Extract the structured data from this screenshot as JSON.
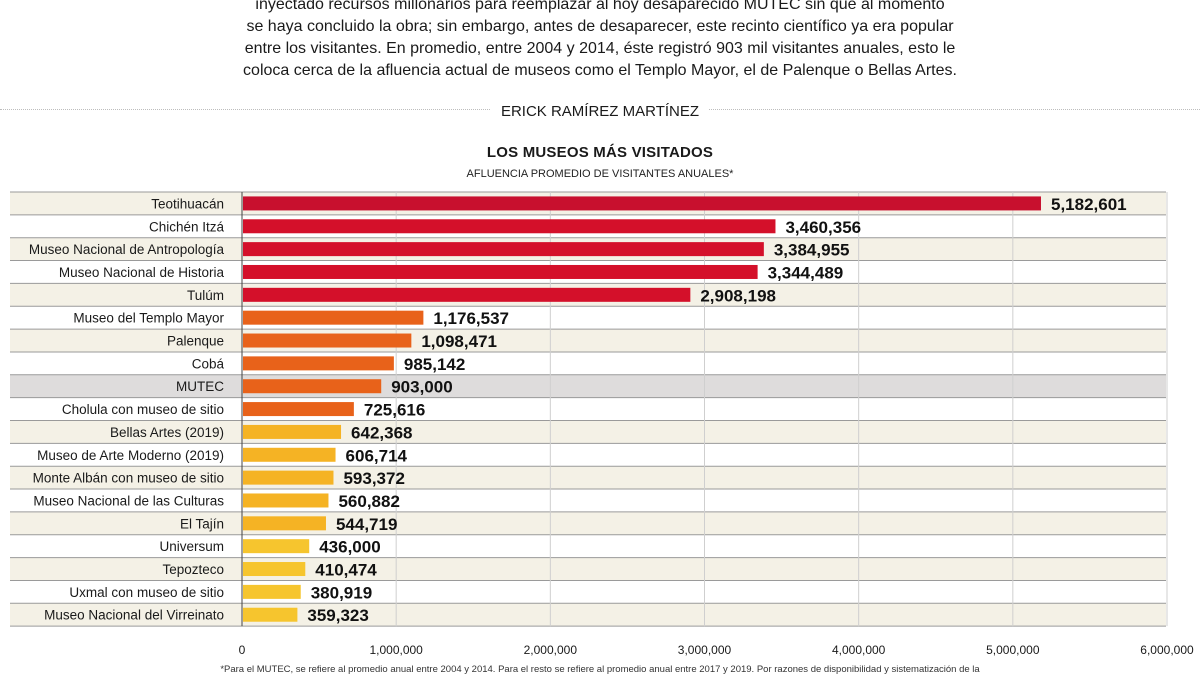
{
  "intro": {
    "lines": [
      "inyectado recursos millonarios para reemplazar al hoy desaparecido MUTEC sin que al momento",
      "se haya concluido la obra; sin embargo, antes de desaparecer, este recinto científico ya era popular",
      "entre los visitantes. En promedio, entre 2004 y 2014, éste registró 903 mil visitantes anuales, esto le",
      "coloca cerca de la afluencia actual de museos como el Templo Mayor, el de Palenque o Bellas Artes."
    ]
  },
  "author": "ERICK RAMÍREZ MARTÍNEZ",
  "chart_data": {
    "type": "bar",
    "orientation": "horizontal",
    "title": "LOS MUSEOS MÁS VISITADOS",
    "subtitle": "AFLUENCIA PROMEDIO DE VISITANTES ANUALES*",
    "categories": [
      "Teotihuacán",
      "Chichén Itzá",
      "Museo Nacional de Antropología",
      "Museo Nacional de Historia",
      "Tulúm",
      "Museo del Templo Mayor",
      "Palenque",
      "Cobá",
      "MUTEC",
      "Cholula con museo de sitio",
      "Bellas Artes (2019)",
      "Museo de Arte Moderno (2019)",
      "Monte Albán con museo de sitio",
      "Museo Nacional de las Culturas",
      "El Tajín",
      "Universum",
      "Tepozteco",
      "Uxmal con museo de sitio",
      "Museo Nacional del Virreinato"
    ],
    "values": [
      5182601,
      3460356,
      3384955,
      3344489,
      2908198,
      1176537,
      1098471,
      985142,
      903000,
      725616,
      642368,
      606714,
      593372,
      560882,
      544719,
      436000,
      410474,
      380919,
      359323
    ],
    "value_labels": [
      "5,182,601",
      "3,460,356",
      "3,384,955",
      "3,344,489",
      "2,908,198",
      "1,176,537",
      "1,098,471",
      "985,142",
      "903,000",
      "725,616",
      "642,368",
      "606,714",
      "593,372",
      "560,882",
      "544,719",
      "436,000",
      "410,474",
      "380,919",
      "359,323"
    ],
    "bar_colors": [
      "#c8102e",
      "#d4102a",
      "#d4102a",
      "#d4102a",
      "#d4102a",
      "#e8621a",
      "#e8621a",
      "#e8621a",
      "#e8621a",
      "#e8621a",
      "#f5b324",
      "#f5b324",
      "#f5b324",
      "#f5b324",
      "#f5b324",
      "#f6c52e",
      "#f6c52e",
      "#f6c52e",
      "#f6c52e"
    ],
    "highlight_category": "MUTEC",
    "xlim": [
      0,
      6000000
    ],
    "xticks": [
      0,
      1000000,
      2000000,
      3000000,
      4000000,
      5000000,
      6000000
    ],
    "xtick_labels": [
      "0",
      "1,000,000",
      "2,000,000",
      "3,000,000",
      "4,000,000",
      "5,000,000",
      "6,000,000"
    ],
    "grid": true,
    "colors": {
      "row_band": "#f4f1e6",
      "row_highlight": "#dedcdc",
      "grid": "#cfcfcf"
    }
  },
  "footnote": "*Para el MUTEC, se refiere al promedio anual entre 2004 y 2014. Para el resto se refiere al promedio anual entre 2017 y 2019. Por razones de disponibilidad y sistematización de la"
}
